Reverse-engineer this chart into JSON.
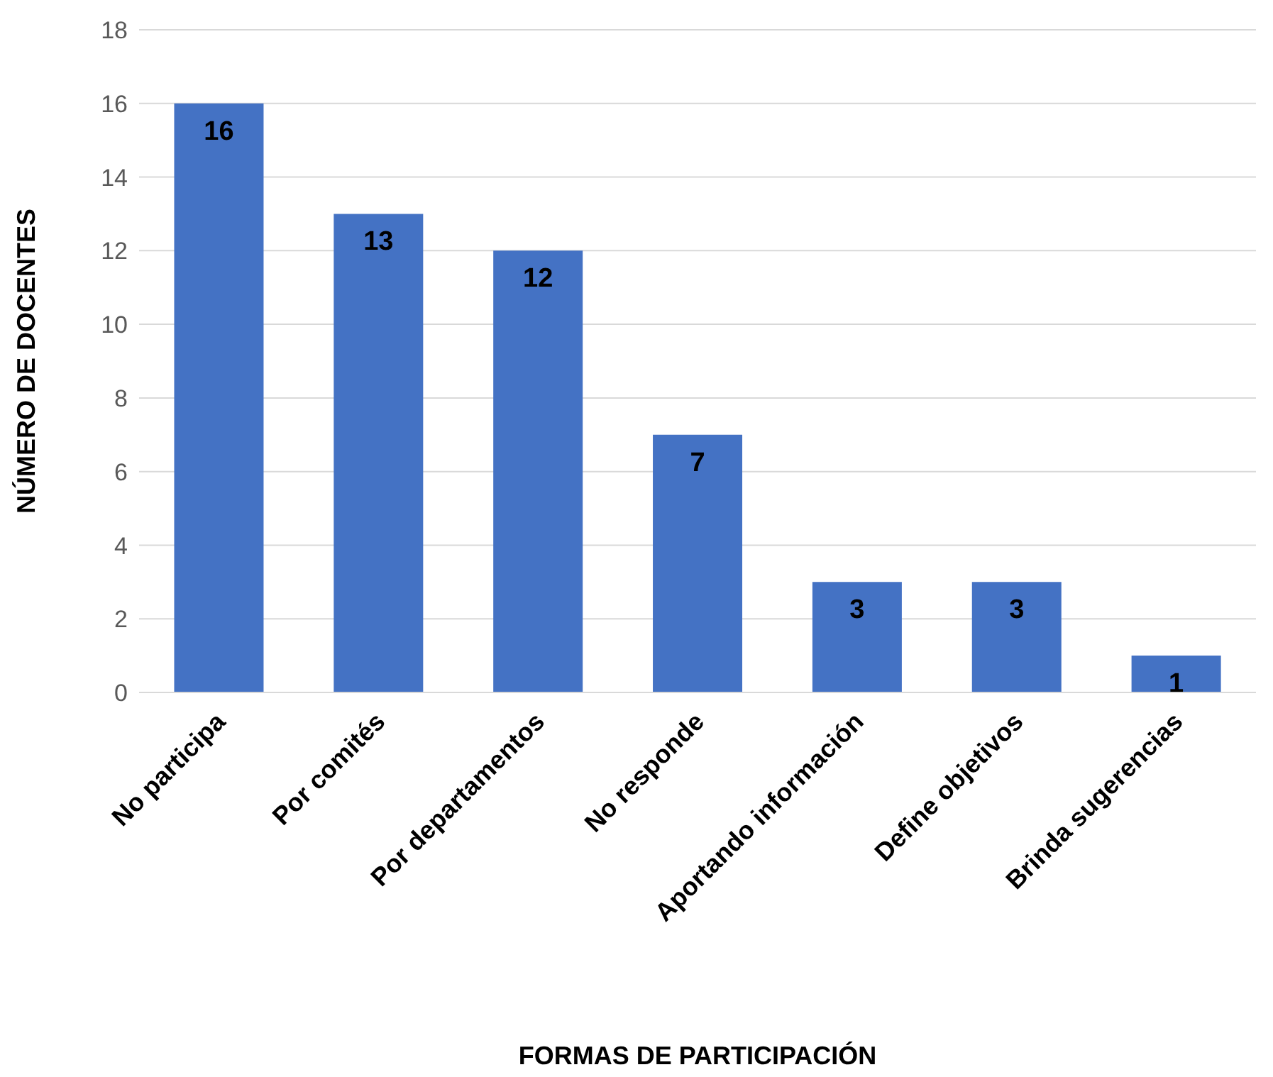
{
  "chart_data": {
    "type": "bar",
    "xlabel": "FORMAS DE PARTICIPACIÓN",
    "ylabel": "NÚMERO DE DOCENTES",
    "categories": [
      "No participa",
      "Por comités",
      "Por departamentos",
      "No responde",
      "Aportando información",
      "Define objetivos",
      "Brinda sugerencias"
    ],
    "values": [
      16,
      13,
      12,
      7,
      3,
      3,
      1
    ],
    "color": "#4472c4",
    "ylim": [
      0,
      18
    ],
    "yticks": [
      0,
      2,
      4,
      6,
      8,
      10,
      12,
      14,
      16,
      18
    ],
    "grid": "y",
    "data_labels": true,
    "legend": false
  }
}
